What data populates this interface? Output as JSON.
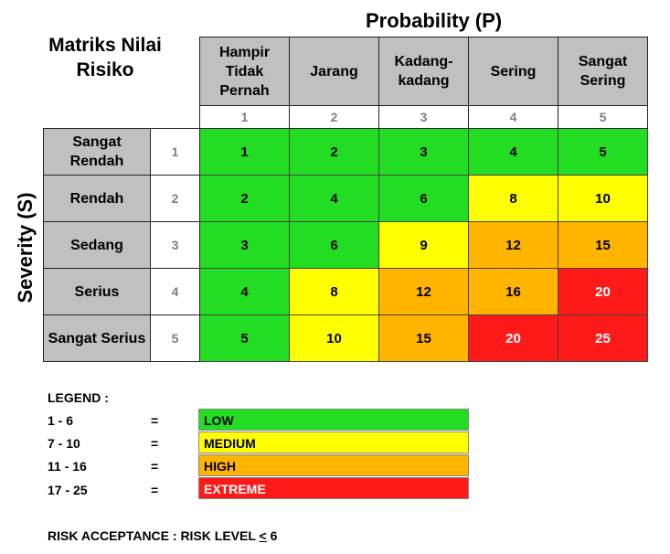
{
  "title": "Matriks Nilai Risiko",
  "probability_title": "Probability (P)",
  "severity_title": "Severity (S)",
  "probability": [
    {
      "label": "Hampir Tidak Pernah",
      "num": "1"
    },
    {
      "label": "Jarang",
      "num": "2"
    },
    {
      "label": "Kadang-kadang",
      "num": "3"
    },
    {
      "label": "Sering",
      "num": "4"
    },
    {
      "label": "Sangat Sering",
      "num": "5"
    }
  ],
  "severity": [
    {
      "label": "Sangat Rendah",
      "num": "1"
    },
    {
      "label": "Rendah",
      "num": "2"
    },
    {
      "label": "Sedang",
      "num": "3"
    },
    {
      "label": "Serius",
      "num": "4"
    },
    {
      "label": "Sangat Serius",
      "num": "5"
    }
  ],
  "matrix": [
    [
      "1",
      "2",
      "3",
      "4",
      "5"
    ],
    [
      "2",
      "4",
      "6",
      "8",
      "10"
    ],
    [
      "3",
      "6",
      "9",
      "12",
      "15"
    ],
    [
      "4",
      "8",
      "12",
      "16",
      "20"
    ],
    [
      "5",
      "10",
      "15",
      "20",
      "25"
    ]
  ],
  "colors": {
    "low": "#22dd22",
    "medium": "#ffff00",
    "high": "#ffb400",
    "extreme": "#ff1a1a"
  },
  "legend": {
    "title": "LEGEND :",
    "eq": "=",
    "items": [
      {
        "range": "1 - 6",
        "label": "LOW"
      },
      {
        "range": "7 - 10",
        "label": "MEDIUM"
      },
      {
        "range": "11 - 16",
        "label": "HIGH"
      },
      {
        "range": "17 - 25",
        "label": "EXTREME"
      }
    ]
  },
  "acceptance": {
    "prefix": "RISK ACCEPTANCE : RISK LEVEL ",
    "symbol": "<",
    "value": " 6"
  }
}
